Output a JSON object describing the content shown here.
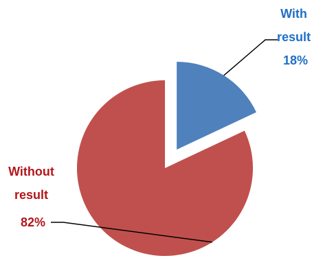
{
  "chart_data": {
    "type": "pie",
    "slices": [
      {
        "label_lines": [
          "With",
          "result"
        ],
        "value": 18,
        "value_label": "18%",
        "color": "#4F81BD",
        "label_color": "#1F6FC6",
        "exploded": true
      },
      {
        "label_lines": [
          "Without",
          "result"
        ],
        "value": 82,
        "value_label": "82%",
        "color": "#C0504D",
        "label_color": "#B3161C",
        "exploded": false
      }
    ],
    "start_angle_deg": 0,
    "direction": "clockwise",
    "legend": "none"
  }
}
